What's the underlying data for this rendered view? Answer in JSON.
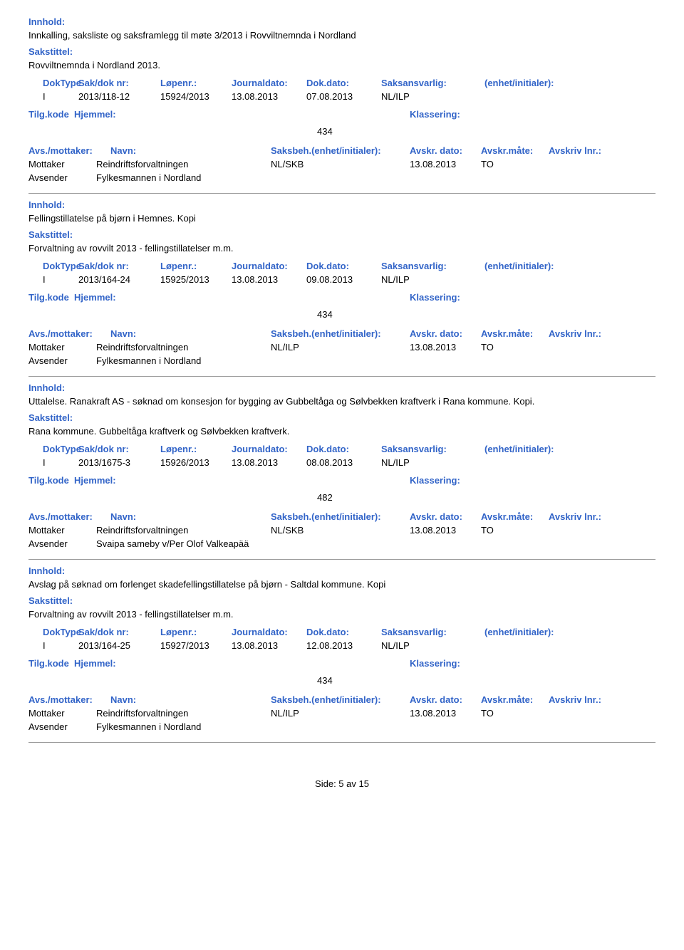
{
  "labels": {
    "innhold": "Innhold:",
    "sakstittel": "Sakstittel:",
    "doktype": "DokType",
    "saknr": "Sak/dok nr:",
    "lopenr": "Løpenr.:",
    "journaldato": "Journaldato:",
    "dokdato": "Dok.dato:",
    "saksansvarlig": "Saksansvarlig:",
    "enhet": "(enhet/initialer):",
    "tilgkode": "Tilg.kode",
    "hjemmel": "Hjemmel:",
    "klassering": "Klassering:",
    "avs_mottaker": "Avs./mottaker:",
    "navn": "Navn:",
    "saksbeh": "Saksbeh.",
    "saksbeh_enhet": "(enhet/initialer):",
    "avskr_dato": "Avskr. dato:",
    "avskr_mate": "Avskr.måte:",
    "avskr_lnr": "Avskriv lnr.:",
    "mottaker": "Mottaker",
    "avsender": "Avsender"
  },
  "entries": [
    {
      "innhold": "Innkalling, saksliste og saksframlegg til møte 3/2013 i Rovviltnemnda i Nordland",
      "sakstittel": "Rovviltnemnda i Nordland 2013.",
      "doktype": "I",
      "saknr": "2013/118-12",
      "lopenr": "15924/2013",
      "journaldato": "13.08.2013",
      "dokdato": "07.08.2013",
      "saksansvarlig": "NL/ILP",
      "klassering": "434",
      "parties": [
        {
          "role": "Mottaker",
          "name": "Reindriftsforvaltningen",
          "saksbeh": "NL/SKB",
          "avskr_dato": "13.08.2013",
          "avskr_mate": "TO"
        },
        {
          "role": "Avsender",
          "name": "Fylkesmannen i Nordland",
          "saksbeh": "",
          "avskr_dato": "",
          "avskr_mate": ""
        }
      ]
    },
    {
      "innhold": "Fellingstillatelse på bjørn i Hemnes. Kopi",
      "sakstittel": "Forvaltning av rovvilt 2013 - fellingstillatelser m.m.",
      "doktype": "I",
      "saknr": "2013/164-24",
      "lopenr": "15925/2013",
      "journaldato": "13.08.2013",
      "dokdato": "09.08.2013",
      "saksansvarlig": "NL/ILP",
      "klassering": "434",
      "parties": [
        {
          "role": "Mottaker",
          "name": "Reindriftsforvaltningen",
          "saksbeh": "NL/ILP",
          "avskr_dato": "13.08.2013",
          "avskr_mate": "TO"
        },
        {
          "role": "Avsender",
          "name": "Fylkesmannen i Nordland",
          "saksbeh": "",
          "avskr_dato": "",
          "avskr_mate": ""
        }
      ]
    },
    {
      "innhold": "Uttalelse. Ranakraft AS - søknad om konsesjon for bygging av Gubbeltåga og Sølvbekken kraftverk i Rana kommune. Kopi.",
      "sakstittel": "Rana kommune. Gubbeltåga kraftverk og Sølvbekken kraftverk.",
      "doktype": "I",
      "saknr": "2013/1675-3",
      "lopenr": "15926/2013",
      "journaldato": "13.08.2013",
      "dokdato": "08.08.2013",
      "saksansvarlig": "NL/ILP",
      "klassering": "482",
      "parties": [
        {
          "role": "Mottaker",
          "name": "Reindriftsforvaltningen",
          "saksbeh": "NL/SKB",
          "avskr_dato": "13.08.2013",
          "avskr_mate": "TO"
        },
        {
          "role": "Avsender",
          "name": "Svaipa sameby v/Per Olof Valkeapää",
          "saksbeh": "",
          "avskr_dato": "",
          "avskr_mate": ""
        }
      ]
    },
    {
      "innhold": "Avslag på søknad om forlenget skadefellingstillatelse på bjørn - Saltdal kommune. Kopi",
      "sakstittel": "Forvaltning av rovvilt 2013 - fellingstillatelser m.m.",
      "doktype": "I",
      "saknr": "2013/164-25",
      "lopenr": "15927/2013",
      "journaldato": "13.08.2013",
      "dokdato": "12.08.2013",
      "saksansvarlig": "NL/ILP",
      "klassering": "434",
      "parties": [
        {
          "role": "Mottaker",
          "name": "Reindriftsforvaltningen",
          "saksbeh": "NL/ILP",
          "avskr_dato": "13.08.2013",
          "avskr_mate": "TO"
        },
        {
          "role": "Avsender",
          "name": "Fylkesmannen i Nordland",
          "saksbeh": "",
          "avskr_dato": "",
          "avskr_mate": ""
        }
      ]
    }
  ],
  "footer": "Side: 5 av 15",
  "colors": {
    "label_blue": "#3264c8",
    "text_black": "#000000",
    "divider_gray": "#999999",
    "background": "#ffffff"
  },
  "typography": {
    "font_family": "Verdana, Geneva, sans-serif",
    "font_size_body": 13,
    "font_weight_label": "bold"
  }
}
